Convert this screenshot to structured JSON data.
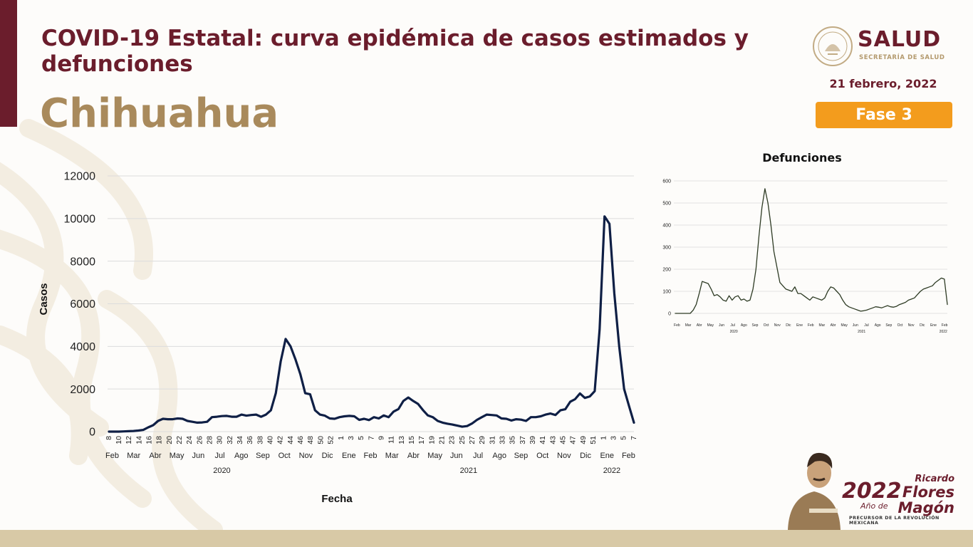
{
  "header": {
    "title": "COVID-19 Estatal: curva epidémica de casos estimados y defunciones",
    "state": "Chihuahua",
    "date": "21 febrero, 2022",
    "phase": "Fase 3"
  },
  "logo": {
    "name": "SALUD",
    "subtitle": "SECRETARÍA DE SALUD"
  },
  "footer": {
    "year": "2022",
    "ano_de": "Año de",
    "first_name": "Ricardo",
    "name_line1": "Flores",
    "name_line2": "Magón",
    "tagline": "PRECURSOR DE LA REVOLUCIÓN MEXICANA"
  },
  "colors": {
    "brand": "#6b1d2c",
    "gold": "#a98a5c",
    "phase": "#f39c1d",
    "cases_line": "#0f1f45",
    "deaths_line": "#2e3b24"
  },
  "chart_data": [
    {
      "type": "line",
      "title": "",
      "xlabel": "Fecha",
      "ylabel": "Casos",
      "ylim": [
        0,
        12000
      ],
      "yticks": [
        0,
        2000,
        4000,
        6000,
        8000,
        10000,
        12000
      ],
      "grid": true,
      "x_week_labels": [
        "8",
        "10",
        "12",
        "14",
        "16",
        "18",
        "20",
        "22",
        "24",
        "26",
        "28",
        "30",
        "32",
        "34",
        "36",
        "38",
        "40",
        "42",
        "44",
        "46",
        "48",
        "50",
        "52",
        "1",
        "3",
        "5",
        "7",
        "9",
        "11",
        "13",
        "15",
        "17",
        "19",
        "21",
        "23",
        "25",
        "27",
        "29",
        "31",
        "33",
        "35",
        "37",
        "39",
        "41",
        "43",
        "45",
        "47",
        "49",
        "51",
        "1",
        "3",
        "5",
        "7"
      ],
      "x_month_labels": [
        "Feb",
        "Mar",
        "Abr",
        "May",
        "Jun",
        "Jul",
        "Ago",
        "Sep",
        "Oct",
        "Nov",
        "Dic",
        "Ene",
        "Feb",
        "Mar",
        "Abr",
        "May",
        "Jun",
        "Jul",
        "Ago",
        "Sep",
        "Oct",
        "Nov",
        "Dic",
        "Ene",
        "Feb"
      ],
      "x_year_labels": [
        "2020",
        "2021",
        "2022"
      ],
      "series": [
        {
          "values": [
            0,
            0,
            0,
            10,
            20,
            30,
            50,
            80,
            200,
            300,
            500,
            600,
            580,
            580,
            620,
            600,
            500,
            460,
            420,
            430,
            460,
            680,
            700,
            730,
            740,
            700,
            700,
            800,
            750,
            780,
            800,
            700,
            800,
            1000,
            1800,
            3300,
            4350,
            4000,
            3400,
            2700,
            1800,
            1750,
            1000,
            800,
            750,
            620,
            600,
            680,
            720,
            740,
            720,
            550,
            600,
            540,
            680,
            620,
            760,
            680,
            940,
            1060,
            1440,
            1600,
            1440,
            1300,
            1010,
            760,
            680,
            500,
            420,
            370,
            330,
            280,
            230,
            260,
            380,
            550,
            680,
            800,
            780,
            760,
            620,
            600,
            520,
            580,
            560,
            500,
            680,
            680,
            720,
            800,
            850,
            780,
            1000,
            1050,
            1400,
            1520,
            1790,
            1580,
            1650,
            1900,
            4800,
            10100,
            9750,
            6500,
            4000,
            2000,
            1200,
            420
          ]
        }
      ]
    },
    {
      "type": "line",
      "title": "Defunciones",
      "xlabel": "",
      "ylabel": "",
      "ylim": [
        0,
        600
      ],
      "yticks": [
        0,
        100,
        200,
        300,
        400,
        500,
        600
      ],
      "grid": true,
      "x_month_labels": [
        "Feb",
        "Mar",
        "Abr",
        "May",
        "Jun",
        "Jul",
        "Ago",
        "Sep",
        "Oct",
        "Nov",
        "Dic",
        "Ene",
        "Feb",
        "Mar",
        "Abr",
        "May",
        "Jun",
        "Jul",
        "Ago",
        "Sep",
        "Oct",
        "Nov",
        "Dic",
        "Ene",
        "Feb"
      ],
      "x_year_labels": [
        "2020",
        "2021",
        "2022"
      ],
      "series": [
        {
          "values": [
            0,
            0,
            0,
            0,
            0,
            0,
            15,
            40,
            90,
            145,
            140,
            135,
            110,
            80,
            85,
            75,
            60,
            55,
            80,
            60,
            75,
            80,
            60,
            65,
            55,
            60,
            110,
            200,
            350,
            480,
            565,
            500,
            400,
            280,
            210,
            140,
            125,
            110,
            105,
            100,
            120,
            90,
            90,
            80,
            70,
            60,
            75,
            70,
            65,
            60,
            70,
            100,
            120,
            115,
            100,
            85,
            60,
            40,
            30,
            25,
            20,
            15,
            10,
            12,
            15,
            20,
            25,
            30,
            28,
            25,
            30,
            35,
            30,
            28,
            32,
            40,
            45,
            50,
            60,
            65,
            70,
            85,
            100,
            110,
            115,
            120,
            125,
            140,
            150,
            160,
            155,
            40
          ]
        }
      ]
    }
  ]
}
